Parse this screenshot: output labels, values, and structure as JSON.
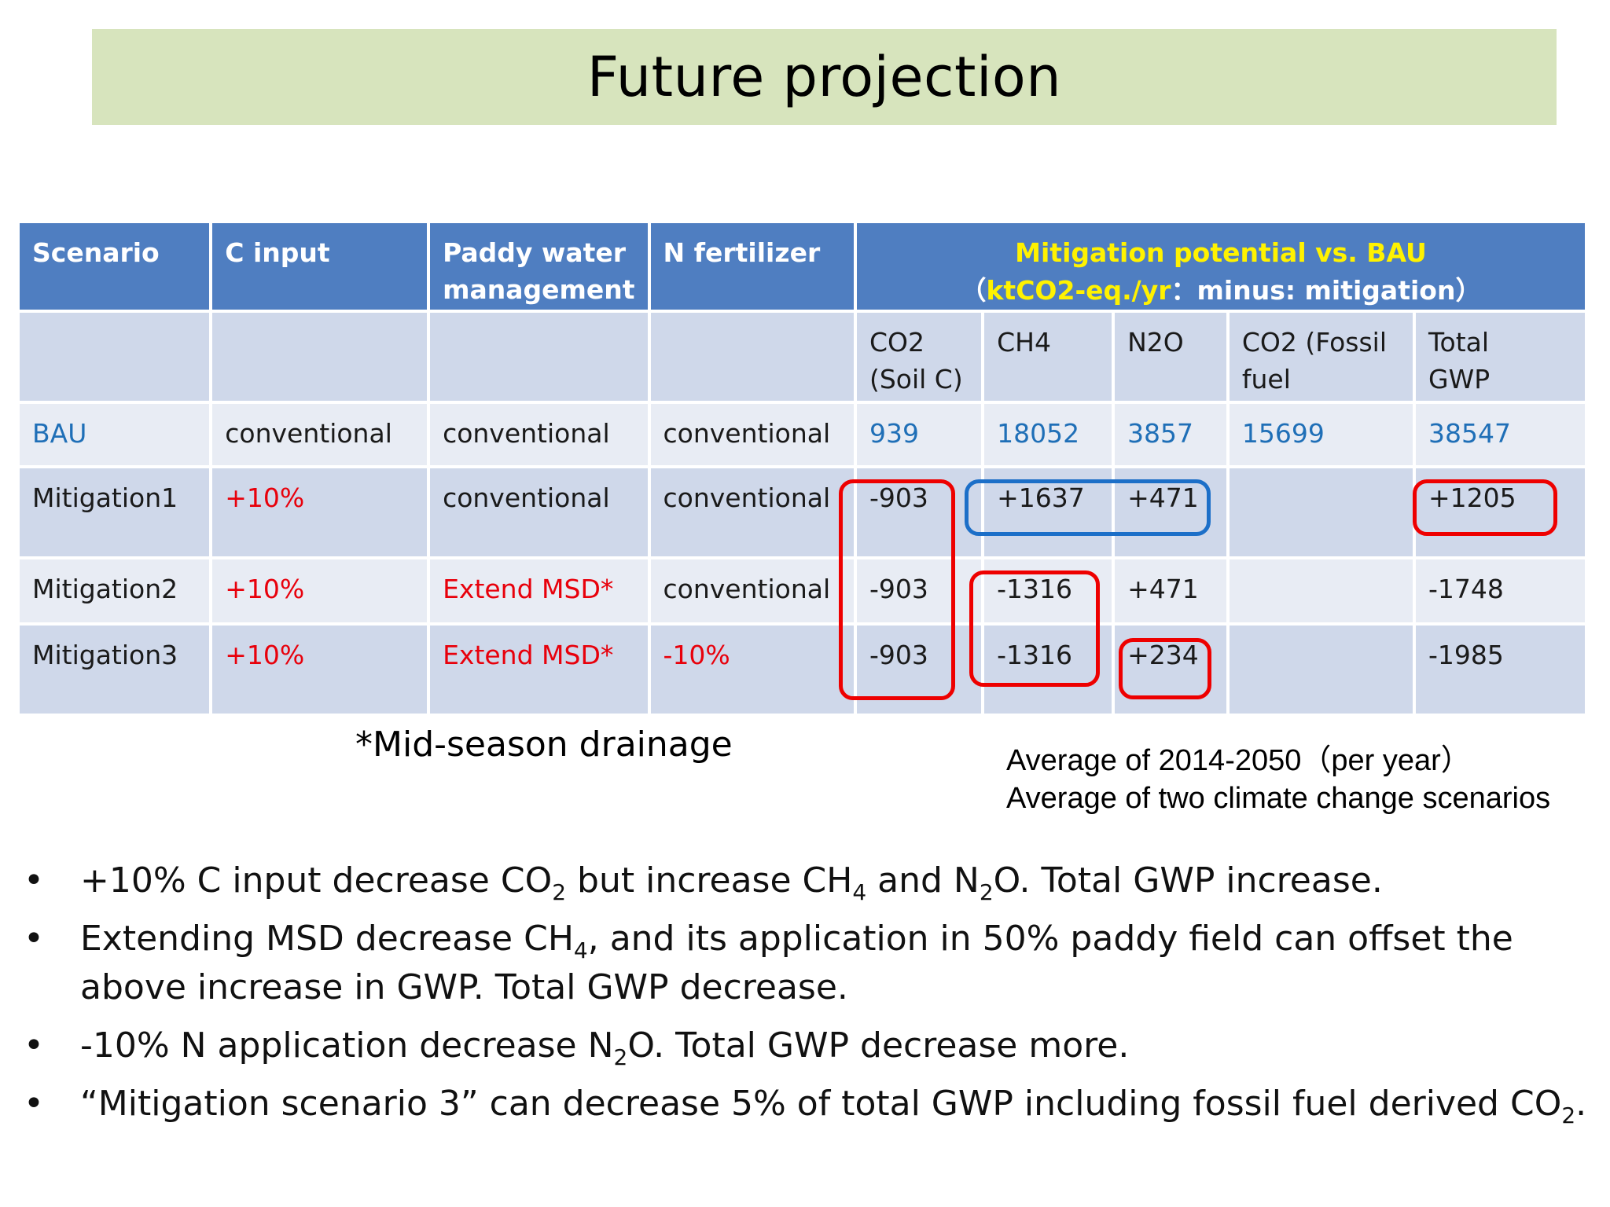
{
  "title": "Future projection",
  "table": {
    "headers": {
      "scenario": "Scenario",
      "c_input": "C input",
      "paddy_line1": "Paddy water",
      "paddy_line2": "management",
      "n_fertilizer": "N fertilizer",
      "mitigation_line1": "Mitigation potential vs. BAU",
      "mitigation_open": "（",
      "mitigation_unit": "ktCO2-eq./yr",
      "mitigation_rest": "：minus: mitigation）"
    },
    "subheaders": {
      "co2_line1": "CO2",
      "co2_line2": "(Soil C)",
      "ch4": "CH4",
      "n2o": "N2O",
      "fossil_line1": "CO2 (Fossil",
      "fossil_line2": "fuel",
      "total_line1": "Total",
      "total_line2": "GWP"
    },
    "rows": [
      {
        "scenario": "BAU",
        "c_input": "conventional",
        "paddy": "conventional",
        "n_fert": "conventional",
        "co2": "939",
        "ch4": "18052",
        "n2o": "3857",
        "fossil": "15699",
        "total": "38547"
      },
      {
        "scenario": "Mitigation1",
        "c_input": "+10%",
        "paddy": "conventional",
        "n_fert": "conventional",
        "co2": "-903",
        "ch4": "+1637",
        "n2o": "+471",
        "fossil": "",
        "total": "+1205"
      },
      {
        "scenario": "Mitigation2",
        "c_input": "+10%",
        "paddy": "Extend MSD*",
        "n_fert": "conventional",
        "co2": "-903",
        "ch4": "-1316",
        "n2o": "+471",
        "fossil": "",
        "total": "-1748"
      },
      {
        "scenario": "Mitigation3",
        "c_input": "+10%",
        "paddy": "Extend MSD*",
        "n_fert": "-10%",
        "co2": "-903",
        "ch4": "-1316",
        "n2o": "+234",
        "fossil": "",
        "total": "-1985"
      }
    ]
  },
  "footnote": "*Mid-season drainage",
  "average_note": {
    "line1": "Average of 2014-2050（per year）",
    "line2": "Average of two climate change scenarios"
  },
  "bullets": {
    "bullet_char": "•",
    "b1": {
      "p1": "+10% C input decrease CO",
      "s1": "2",
      "p2": " but increase CH",
      "s2": "4",
      "p3": " and N",
      "s3": "2",
      "p4": "O. Total GWP increase."
    },
    "b2": {
      "p1": "Extending MSD decrease CH",
      "s1": "4",
      "p2": ", and its application in 50% paddy field can offset the above increase in GWP. Total GWP decrease."
    },
    "b3": {
      "p1": "-10% N application decrease N",
      "s1": "2",
      "p2": "O. Total GWP decrease more."
    },
    "b4": {
      "p1": "“Mitigation scenario 3” can decrease 5% of total GWP including fossil fuel derived CO",
      "s1": "2",
      "p2": "."
    }
  },
  "colors": {
    "header_blue": "#4f7ec1",
    "title_green": "#d7e4bd",
    "highlight_red": "#ee0000",
    "highlight_blue": "#1c6fc8",
    "text_red": "#e8000b",
    "text_blue": "#1f6fb7"
  }
}
